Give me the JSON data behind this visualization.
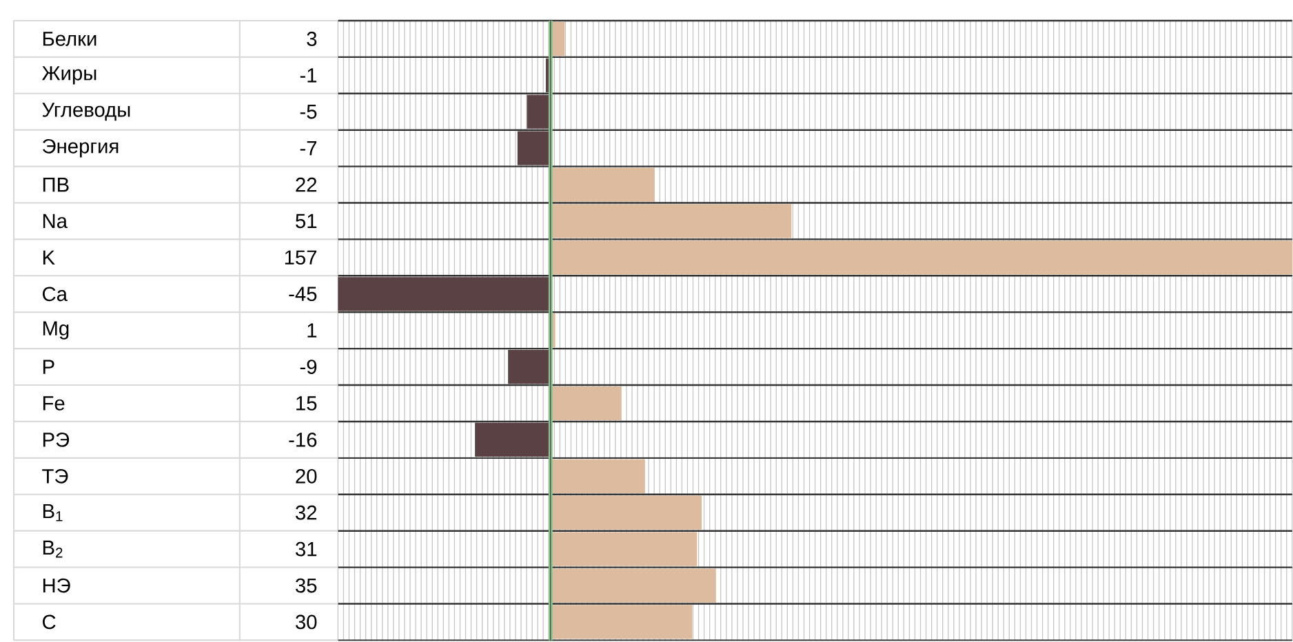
{
  "chart_data": {
    "type": "bar",
    "orientation": "horizontal",
    "categories": [
      "Белки",
      "Жиры",
      "Углеводы",
      "Энергия",
      "ПВ",
      "Na",
      "K",
      "Ca",
      "Mg",
      "P",
      "Fe",
      "РЭ",
      "ТЭ",
      "B$_{1}$",
      "B$_{2}$",
      "НЭ",
      "C"
    ],
    "values": [
      3,
      -1,
      -5,
      -7,
      22,
      51,
      157,
      -45,
      1,
      -9,
      15,
      -16,
      20,
      32,
      31,
      35,
      30
    ],
    "colors": [
      "#ddbb9e",
      "#5a4244",
      "#5a4244",
      "#5a4244",
      "#ddbb9e",
      "#ddbb9e",
      "#ddbb9e",
      "#5a4244",
      "#ddbb9e",
      "#5a4244",
      "#ddbb9e",
      "#5a4244",
      "#ddbb9e",
      "#ddbb9e",
      "#ddbb9e",
      "#ddbb9e",
      "#ddbb9e"
    ],
    "data_labels": true,
    "grid": "x",
    "ref_lines": [
      {
        "axis": "x",
        "value": 0,
        "color": "#8cc68c"
      }
    ]
  }
}
